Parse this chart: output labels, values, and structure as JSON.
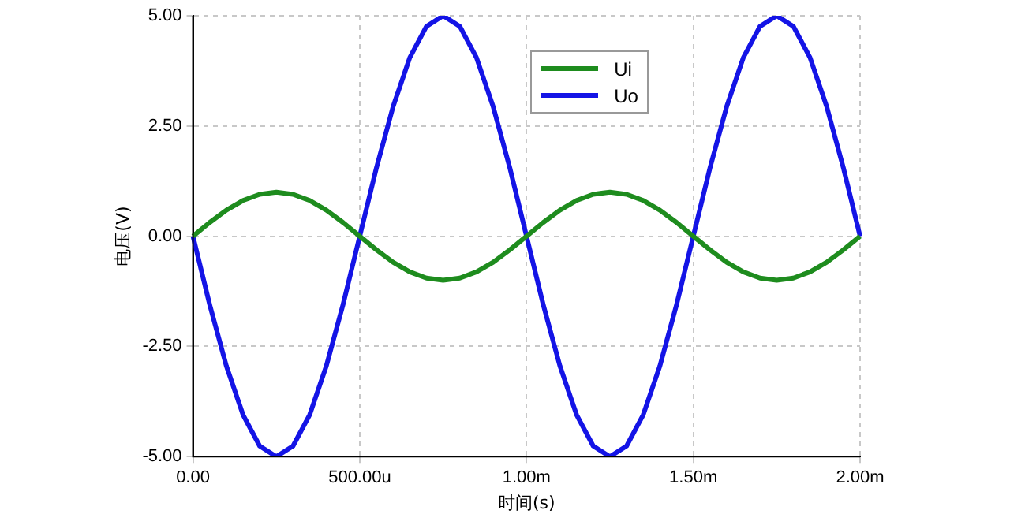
{
  "chart_data": {
    "type": "line",
    "xlabel": "时间(s)",
    "ylabel": "电压(V)",
    "categories": [
      "0.00",
      null,
      null,
      null,
      null,
      null,
      null,
      null,
      null,
      null,
      "500.00u",
      null,
      null,
      null,
      null,
      null,
      null,
      null,
      null,
      null,
      "1.00m",
      null,
      null,
      null,
      null,
      null,
      null,
      null,
      null,
      null,
      "1.50m",
      null,
      null,
      null,
      null,
      null,
      null,
      null,
      null,
      null,
      "2.00m"
    ],
    "series": [
      {
        "name": "Ui",
        "color": "#1e8c1e",
        "values": [
          0,
          0.31,
          0.59,
          0.81,
          0.95,
          1,
          0.95,
          0.81,
          0.59,
          0.31,
          0,
          -0.31,
          -0.59,
          -0.81,
          -0.95,
          -1,
          -0.95,
          -0.81,
          -0.59,
          -0.31,
          0,
          0.31,
          0.59,
          0.81,
          0.95,
          1,
          0.95,
          0.81,
          0.59,
          0.31,
          0,
          -0.31,
          -0.59,
          -0.81,
          -0.95,
          -1,
          -0.95,
          -0.81,
          -0.59,
          -0.31,
          0
        ]
      },
      {
        "name": "Uo",
        "color": "#1414e6",
        "values": [
          0,
          -1.55,
          -2.94,
          -4.05,
          -4.76,
          -5,
          -4.76,
          -4.05,
          -2.94,
          -1.55,
          0,
          1.55,
          2.94,
          4.05,
          4.76,
          5,
          4.76,
          4.05,
          2.94,
          1.55,
          0,
          -1.55,
          -2.94,
          -4.05,
          -4.76,
          -5,
          -4.76,
          -4.05,
          -2.94,
          -1.55,
          0,
          1.55,
          2.94,
          4.05,
          4.76,
          5,
          4.76,
          4.05,
          2.94,
          1.55,
          0
        ]
      }
    ],
    "ylim": [
      -5,
      5
    ],
    "yticks": [
      {
        "value": -5,
        "label": "-5.00"
      },
      {
        "value": -2.5,
        "label": "-2.50"
      },
      {
        "value": 0,
        "label": "0.00"
      },
      {
        "value": 2.5,
        "label": "2.50"
      },
      {
        "value": 5,
        "label": "5.00"
      }
    ],
    "grid": true,
    "legend": "top",
    "marker": "none",
    "line_style": "solid"
  }
}
